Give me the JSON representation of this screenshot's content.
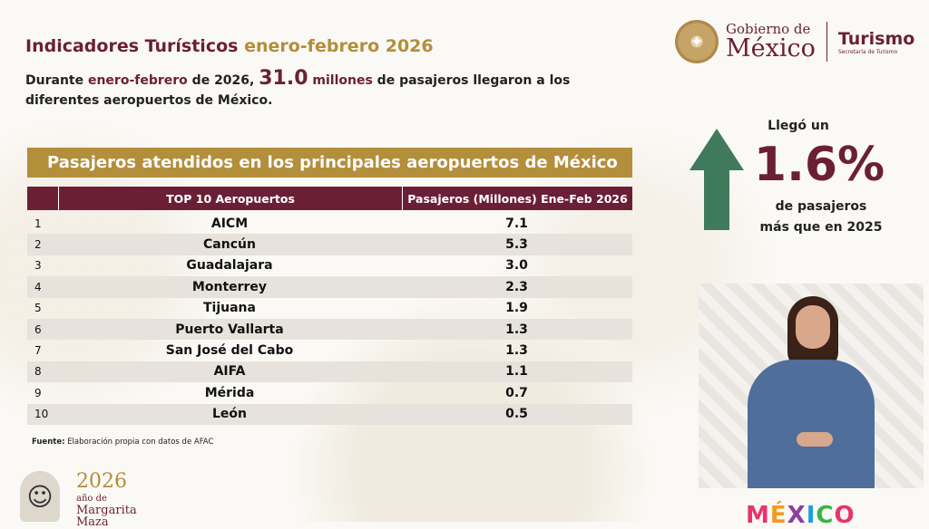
{
  "header": {
    "title_main": "Indicadores Turísticos",
    "title_accent": "enero-febrero 2026",
    "subtitle_part1": "Durante",
    "subtitle_accent1": "enero-febrero",
    "subtitle_part2": "de 2026,",
    "subtitle_big": "31.0",
    "subtitle_accent2": "millones",
    "subtitle_part3": "de pasajeros llegaron a los diferentes aeropuertos de México."
  },
  "logo": {
    "gov_line1": "Gobierno de",
    "gov_line2": "México",
    "sector_name": "Turismo",
    "sector_sub": "Secretaría de Turismo"
  },
  "table": {
    "banner": "Pasajeros atendidos en los principales aeropuertos de México",
    "col_name": "TOP 10 Aeropuertos",
    "col_value": "Pasajeros (Millones) Ene-Feb 2026",
    "rows": [
      {
        "rank": "1",
        "name": "AICM",
        "value": "7.1"
      },
      {
        "rank": "2",
        "name": "Cancún",
        "value": "5.3"
      },
      {
        "rank": "3",
        "name": "Guadalajara",
        "value": "3.0"
      },
      {
        "rank": "4",
        "name": "Monterrey",
        "value": "2.3"
      },
      {
        "rank": "5",
        "name": "Tijuana",
        "value": "1.9"
      },
      {
        "rank": "6",
        "name": "Puerto Vallarta",
        "value": "1.3"
      },
      {
        "rank": "7",
        "name": "San José del Cabo",
        "value": "1.3"
      },
      {
        "rank": "8",
        "name": "AIFA",
        "value": "1.1"
      },
      {
        "rank": "9",
        "name": "Mérida",
        "value": "0.7"
      },
      {
        "rank": "10",
        "name": "León",
        "value": "0.5"
      }
    ],
    "source_label": "Fuente:",
    "source_text": "Elaboración propia con datos de AFAC"
  },
  "stat": {
    "top": "Llegó un",
    "value": "1.6%",
    "bottom1": "de pasajeros",
    "bottom2": "más que en 2025",
    "arrow_icon": "arrow-up-icon"
  },
  "anniversary": {
    "year": "2026",
    "line1": "año de",
    "line2": "Margarita",
    "line3": "Maza"
  },
  "brand": {
    "letters": [
      "M",
      "É",
      "X",
      "I",
      "C",
      "O"
    ]
  },
  "colors": {
    "maroon": "#6b1f37",
    "gold": "#b38e3b",
    "green_arrow": "#3f7a5c"
  }
}
